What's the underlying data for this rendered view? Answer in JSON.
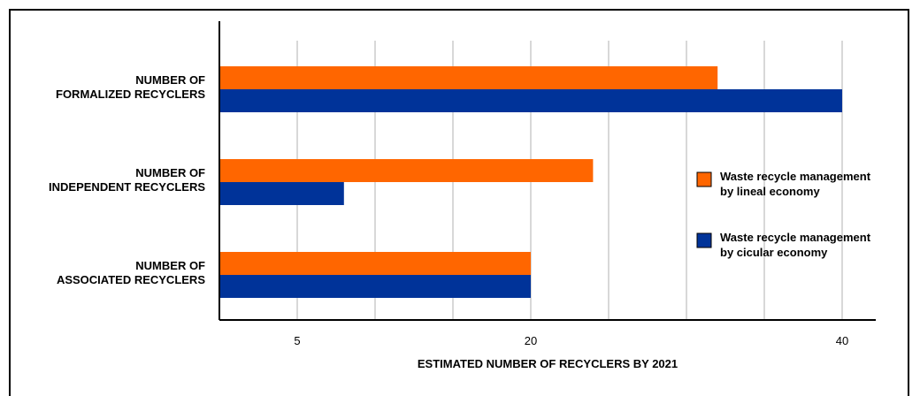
{
  "chart_data": {
    "type": "bar",
    "orientation": "horizontal",
    "categories": [
      [
        "NUMBER OF",
        "FORMALIZED RECYCLERS"
      ],
      [
        "NUMBER OF",
        "INDEPENDENT RECYCLERS"
      ],
      [
        "NUMBER OF",
        "ASSOCIATED RECYCLERS"
      ]
    ],
    "series": [
      {
        "name": [
          "Waste recycle management",
          "by lineal economy"
        ],
        "color": "#ff6600",
        "values": [
          32,
          24,
          20
        ]
      },
      {
        "name": [
          "Waste recycle management",
          "by cicular economy"
        ],
        "color": "#003399",
        "values": [
          40,
          8,
          20
        ]
      }
    ],
    "xlabel": "ESTIMATED NUMBER OF RECYCLERS BY 2021",
    "ylabel": "",
    "xlim": [
      0,
      42
    ],
    "tick_labels": [
      5,
      20,
      40
    ],
    "grid": true,
    "legend": "right"
  }
}
